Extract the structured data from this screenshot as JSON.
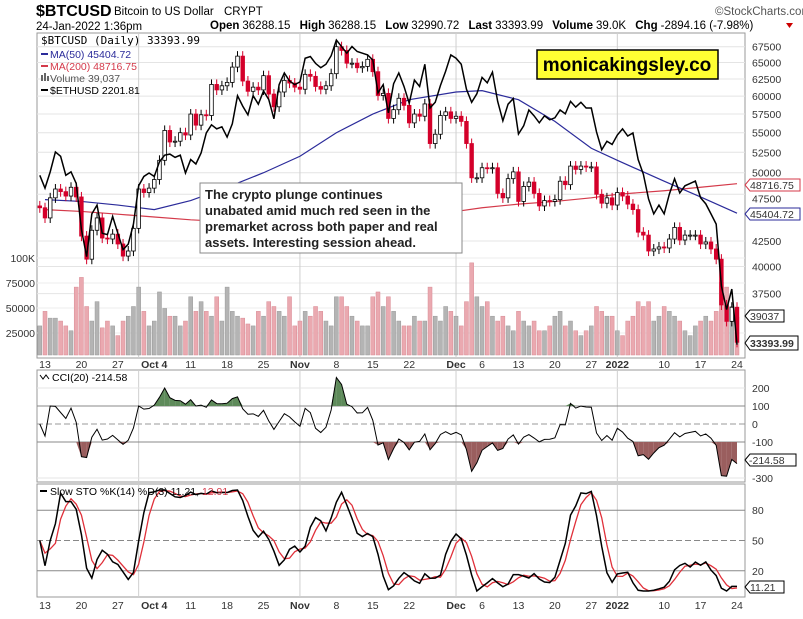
{
  "header": {
    "symbol": "$BTCUSD",
    "name": "Bitcoin to US Dollar",
    "exchange": "CRYPT",
    "date": "24-Jan-2022 1:36pm",
    "open_label": "Open",
    "open": "36288.15",
    "high_label": "High",
    "high": "36288.15",
    "low_label": "Low",
    "low": "32990.72",
    "last_label": "Last",
    "last": "33393.99",
    "volume_label": "Volume",
    "volume": "39.0K",
    "chg_label": "Chg",
    "chg": "-2894.16 (-7.98%)",
    "watermark": "©StockCharts.com"
  },
  "legend": {
    "price": "$BTCUSD (Daily) 33393.99",
    "ma50": "MA(50) 45404.72",
    "ma200": "MA(200) 48716.75",
    "volume": "Volume 39,037",
    "eth": "$ETHUSD 2201.81"
  },
  "logo": "monicakingsley.co",
  "annotation": [
    "The crypto plunge continues",
    "unabated amid much red seen in the",
    "premarket across both paper and real",
    "assets. Interesting session ahead."
  ],
  "colors": {
    "down": "#d4002a",
    "up": "#ffffff",
    "ma50": "#2b2b9a",
    "ma200": "#d43a4a",
    "eth": "#000000",
    "vol_down": "#eaa9b0",
    "vol_up": "#b4b4b4",
    "cci_pos": "#5e8a5a",
    "cci_neg": "#9a5e5e",
    "logo_bg": "#ffff33"
  },
  "chart_data": [
    {
      "type": "candlestick",
      "title": "$BTCUSD (Daily)",
      "scale": "log",
      "ylim": [
        32000,
        69000
      ],
      "y_ticks": [
        "67500",
        "65000",
        "62500",
        "60000",
        "57500",
        "55000",
        "52500",
        "50000",
        "47500",
        "42500",
        "40000",
        "37500"
      ],
      "x_ticks": [
        "13",
        "20",
        "27",
        "Oct 4",
        "11",
        "18",
        "25",
        "Nov",
        "8",
        "15",
        "22",
        "Dec",
        "6",
        "13",
        "20",
        "27",
        "2022",
        "10",
        "17",
        "24"
      ],
      "close": [
        46000,
        44900,
        47100,
        48100,
        47800,
        47300,
        48300,
        47200,
        43000,
        40700,
        43600,
        44900,
        42800,
        42700,
        43200,
        42200,
        41000,
        41500,
        43800,
        48100,
        47700,
        48200,
        49200,
        51500,
        55300,
        53800,
        53900,
        55000,
        54700,
        57500,
        56000,
        57400,
        57300,
        61700,
        60900,
        61500,
        62000,
        64300,
        66000,
        62200,
        60700,
        61300,
        60900,
        63000,
        60300,
        58500,
        60600,
        62300,
        61900,
        61300,
        61000,
        63200,
        62900,
        61400,
        61000,
        61500,
        63300,
        67500,
        66900,
        64900,
        64900,
        64200,
        64400,
        65500,
        63600,
        60100,
        60400,
        56900,
        58100,
        59700,
        58700,
        56300,
        57500,
        57200,
        58900,
        53600,
        54800,
        57300,
        57800,
        56900,
        57200,
        56500,
        53600,
        49400,
        49400,
        50600,
        50500,
        50600,
        47600,
        47100,
        49300,
        50100,
        46700,
        48400,
        48900,
        47600,
        46200,
        46800,
        46700,
        46900,
        49000,
        48600,
        50800,
        50400,
        50800,
        50700,
        50700,
        47500,
        46500,
        47100,
        46300,
        47700,
        47300,
        46400,
        45800,
        43400,
        43100,
        41500,
        41700,
        41900,
        41800,
        42700,
        43900,
        42600,
        43100,
        43100,
        43100,
        42200,
        42400,
        41700,
        40700,
        36500,
        35100,
        36300,
        33394
      ],
      "volume_ticks": [
        "100K",
        "75000",
        "50000",
        "25000"
      ],
      "volume_k": [
        30,
        45,
        38,
        38,
        35,
        30,
        25,
        70,
        80,
        50,
        35,
        55,
        28,
        35,
        30,
        20,
        35,
        40,
        50,
        70,
        45,
        30,
        35,
        65,
        48,
        40,
        40,
        30,
        35,
        60,
        45,
        55,
        45,
        40,
        60,
        35,
        70,
        45,
        40,
        38,
        32,
        30,
        45,
        40,
        55,
        50,
        45,
        40,
        60,
        30,
        35,
        45,
        40,
        50,
        45,
        35,
        30,
        60,
        60,
        50,
        40,
        35,
        30,
        30,
        60,
        65,
        50,
        60,
        45,
        35,
        30,
        30,
        40,
        35,
        35,
        70,
        40,
        35,
        50,
        45,
        40,
        30,
        55,
        95,
        60,
        50,
        55,
        40,
        35,
        40,
        30,
        25,
        45,
        35,
        30,
        35,
        25,
        25,
        30,
        40,
        45,
        30,
        35,
        25,
        20,
        25,
        30,
        50,
        45,
        40,
        40,
        25,
        20,
        35,
        40,
        55,
        50,
        55,
        35,
        40,
        50,
        45,
        40,
        35,
        25,
        20,
        30,
        35,
        40,
        35,
        45,
        75,
        70,
        50,
        39
      ],
      "ma50_at_ticks": [
        46900,
        46700,
        46300,
        45800,
        46800,
        48300,
        50000,
        52000,
        55000,
        57500,
        59500,
        60600,
        60800,
        59500,
        56500,
        53000,
        51500,
        49000,
        47200,
        45405
      ],
      "ma200_at_ticks": [
        45800,
        45600,
        45300,
        45000,
        44700,
        44500,
        44400,
        44400,
        44500,
        44700,
        45000,
        45600,
        46000,
        46400,
        46700,
        47100,
        47500,
        47900,
        48300,
        48717
      ],
      "eth_close": [
        3400,
        3290,
        3430,
        3610,
        3570,
        3400,
        3430,
        3330,
        2960,
        2760,
        3080,
        3150,
        2930,
        2920,
        3060,
        2930,
        2810,
        2850,
        3000,
        3310,
        3390,
        3420,
        3390,
        3520,
        3580,
        3590,
        3560,
        3580,
        3420,
        3540,
        3500,
        3600,
        3790,
        3870,
        3830,
        3850,
        3750,
        3880,
        4170,
        4060,
        3970,
        4170,
        4080,
        4220,
        4130,
        3930,
        4290,
        4420,
        4330,
        4290,
        4320,
        4590,
        4610,
        4530,
        4480,
        4520,
        4620,
        4810,
        4730,
        4650,
        4730,
        4670,
        4650,
        4630,
        4570,
        4200,
        4290,
        3990,
        4300,
        4420,
        4270,
        4090,
        4340,
        4270,
        4520,
        4040,
        4100,
        4280,
        4440,
        4630,
        4590,
        4520,
        4240,
        4100,
        4190,
        4370,
        4310,
        4430,
        4110,
        3910,
        4080,
        4140,
        3780,
        3860,
        4020,
        3960,
        3890,
        3960,
        3920,
        3940,
        4020,
        3980,
        4110,
        4050,
        4100,
        4040,
        4040,
        3800,
        3630,
        3710,
        3680,
        3770,
        3830,
        3760,
        3790,
        3540,
        3410,
        3200,
        3080,
        3150,
        3080,
        3240,
        3370,
        3250,
        3310,
        3330,
        3350,
        3210,
        3160,
        3080,
        3000,
        2560,
        2410,
        2540,
        2202
      ],
      "tags": {
        "ma200": "48716.75",
        "ma50": "45404.72",
        "volume": "39037",
        "last": "33393.99"
      }
    },
    {
      "type": "line",
      "title": "CCI(20) -214.58",
      "y_ticks": [
        "200",
        "100",
        "0",
        "-100",
        "-300"
      ],
      "last_tag": "-214.58"
    },
    {
      "type": "line",
      "title_prefix": "Slow STO %K(14) %D(3)",
      "k_last": "11.21",
      "d_last": "12.91",
      "y_ticks": [
        "80",
        "50",
        "20"
      ],
      "last_tag": "11.21"
    }
  ]
}
